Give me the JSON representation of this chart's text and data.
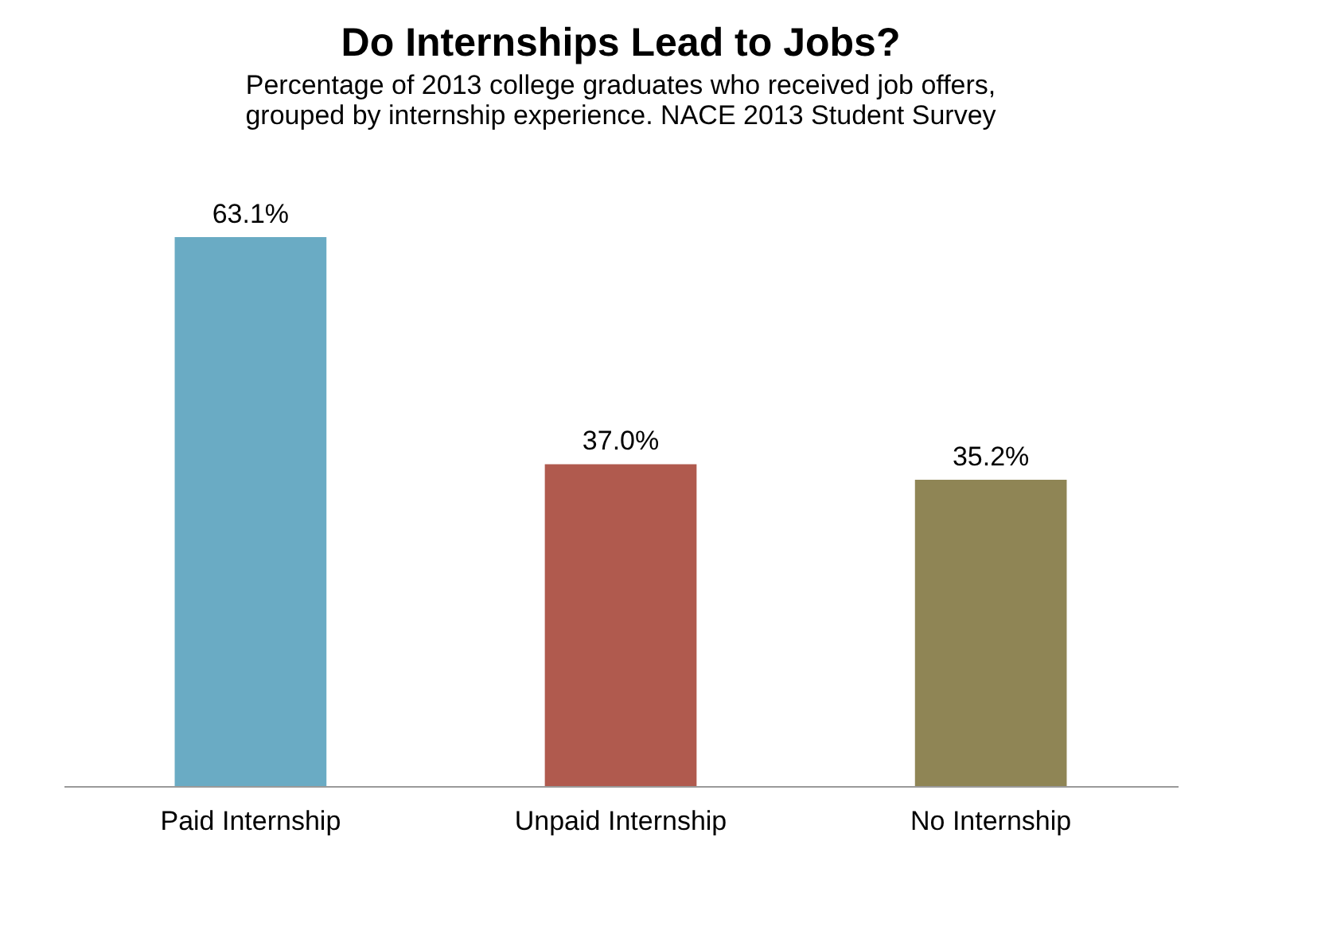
{
  "chart_data": {
    "type": "bar",
    "title": "Do Internships Lead to Jobs?",
    "subtitle": "Percentage of 2013 college graduates who received job offers,\ngrouped by internship experience. NACE 2013 Student Survey",
    "categories": [
      "Paid Internship",
      "Unpaid Internship",
      "No Internship"
    ],
    "values": [
      63.1,
      37.0,
      35.2
    ],
    "value_labels": [
      "63.1%",
      "37.0%",
      "35.2%"
    ],
    "colors": [
      "#6aabc4",
      "#b05a4e",
      "#8f8555"
    ],
    "grid": false
  }
}
